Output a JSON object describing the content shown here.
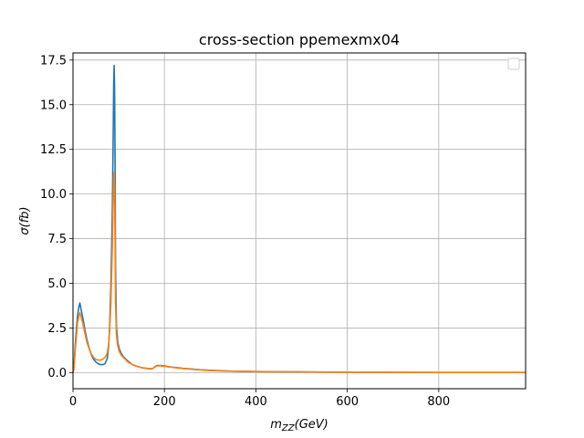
{
  "chart_data": {
    "type": "line",
    "title": "cross-section ppemexmx04",
    "xlabel_main": "m",
    "xlabel_sub": "ZZ",
    "xlabel_rest": "(GeV)",
    "ylabel": "σ(fb)",
    "xlim": [
      0,
      990
    ],
    "ylim": [
      -0.9,
      17.9
    ],
    "xticks": [
      0,
      200,
      400,
      600,
      800
    ],
    "xtick_labels": [
      "0",
      "200",
      "400",
      "600",
      "800"
    ],
    "yticks": [
      0,
      2.5,
      5,
      7.5,
      10,
      12.5,
      15,
      17.5
    ],
    "ytick_labels": [
      "0.0",
      "2.5",
      "5.0",
      "7.5",
      "10.0",
      "12.5",
      "15.0",
      "17.5"
    ],
    "grid": true,
    "legend": "upper-right, empty",
    "series": [
      {
        "color": "#1f77b4",
        "x": [
          0,
          2,
          5,
          8,
          10,
          13,
          15,
          18,
          22,
          26,
          30,
          35,
          40,
          45,
          50,
          55,
          60,
          65,
          70,
          75,
          78,
          80,
          83,
          86,
          88,
          89,
          90,
          91,
          92,
          93,
          95,
          98,
          101,
          105,
          110,
          120,
          130,
          140,
          150,
          160,
          170,
          175,
          180,
          185,
          190,
          200,
          210,
          220,
          230,
          240,
          260,
          280,
          300,
          320,
          350,
          400,
          450,
          500,
          550,
          600,
          700,
          800,
          900,
          990
        ],
        "y": [
          0.0,
          0.3,
          1.6,
          2.6,
          3.2,
          3.7,
          3.9,
          3.5,
          3.0,
          2.4,
          1.9,
          1.4,
          1.0,
          0.75,
          0.6,
          0.5,
          0.45,
          0.45,
          0.5,
          0.8,
          1.5,
          2.5,
          5.0,
          9.0,
          13.5,
          16.2,
          17.2,
          15.8,
          12.0,
          6.0,
          2.6,
          1.7,
          1.35,
          1.1,
          0.9,
          0.65,
          0.45,
          0.35,
          0.28,
          0.24,
          0.21,
          0.24,
          0.35,
          0.4,
          0.4,
          0.38,
          0.33,
          0.3,
          0.27,
          0.24,
          0.2,
          0.16,
          0.13,
          0.11,
          0.08,
          0.06,
          0.05,
          0.04,
          0.03,
          0.02,
          0.015,
          0.01,
          0.01,
          0.01
        ]
      },
      {
        "color": "#ff7f0e",
        "x": [
          0,
          2,
          5,
          8,
          10,
          13,
          15,
          18,
          22,
          26,
          30,
          35,
          40,
          45,
          50,
          55,
          60,
          65,
          70,
          75,
          78,
          80,
          83,
          86,
          88,
          89,
          90,
          91,
          92,
          93,
          95,
          98,
          101,
          105,
          110,
          120,
          130,
          140,
          150,
          160,
          170,
          175,
          180,
          185,
          190,
          200,
          210,
          220,
          230,
          240,
          260,
          280,
          300,
          320,
          350,
          400,
          450,
          500,
          550,
          600,
          700,
          800,
          900,
          990
        ],
        "y": [
          0.0,
          0.2,
          1.3,
          2.2,
          2.8,
          3.2,
          3.35,
          3.1,
          2.7,
          2.2,
          1.75,
          1.35,
          1.05,
          0.85,
          0.75,
          0.7,
          0.7,
          0.75,
          0.85,
          1.1,
          1.6,
          2.3,
          4.0,
          7.0,
          9.8,
          11.0,
          11.2,
          10.2,
          7.5,
          4.0,
          2.1,
          1.5,
          1.2,
          1.0,
          0.85,
          0.6,
          0.45,
          0.35,
          0.28,
          0.25,
          0.22,
          0.25,
          0.33,
          0.38,
          0.38,
          0.36,
          0.32,
          0.29,
          0.26,
          0.23,
          0.19,
          0.15,
          0.12,
          0.1,
          0.08,
          0.06,
          0.05,
          0.04,
          0.03,
          0.02,
          0.015,
          0.01,
          0.01,
          0.01
        ]
      }
    ]
  }
}
